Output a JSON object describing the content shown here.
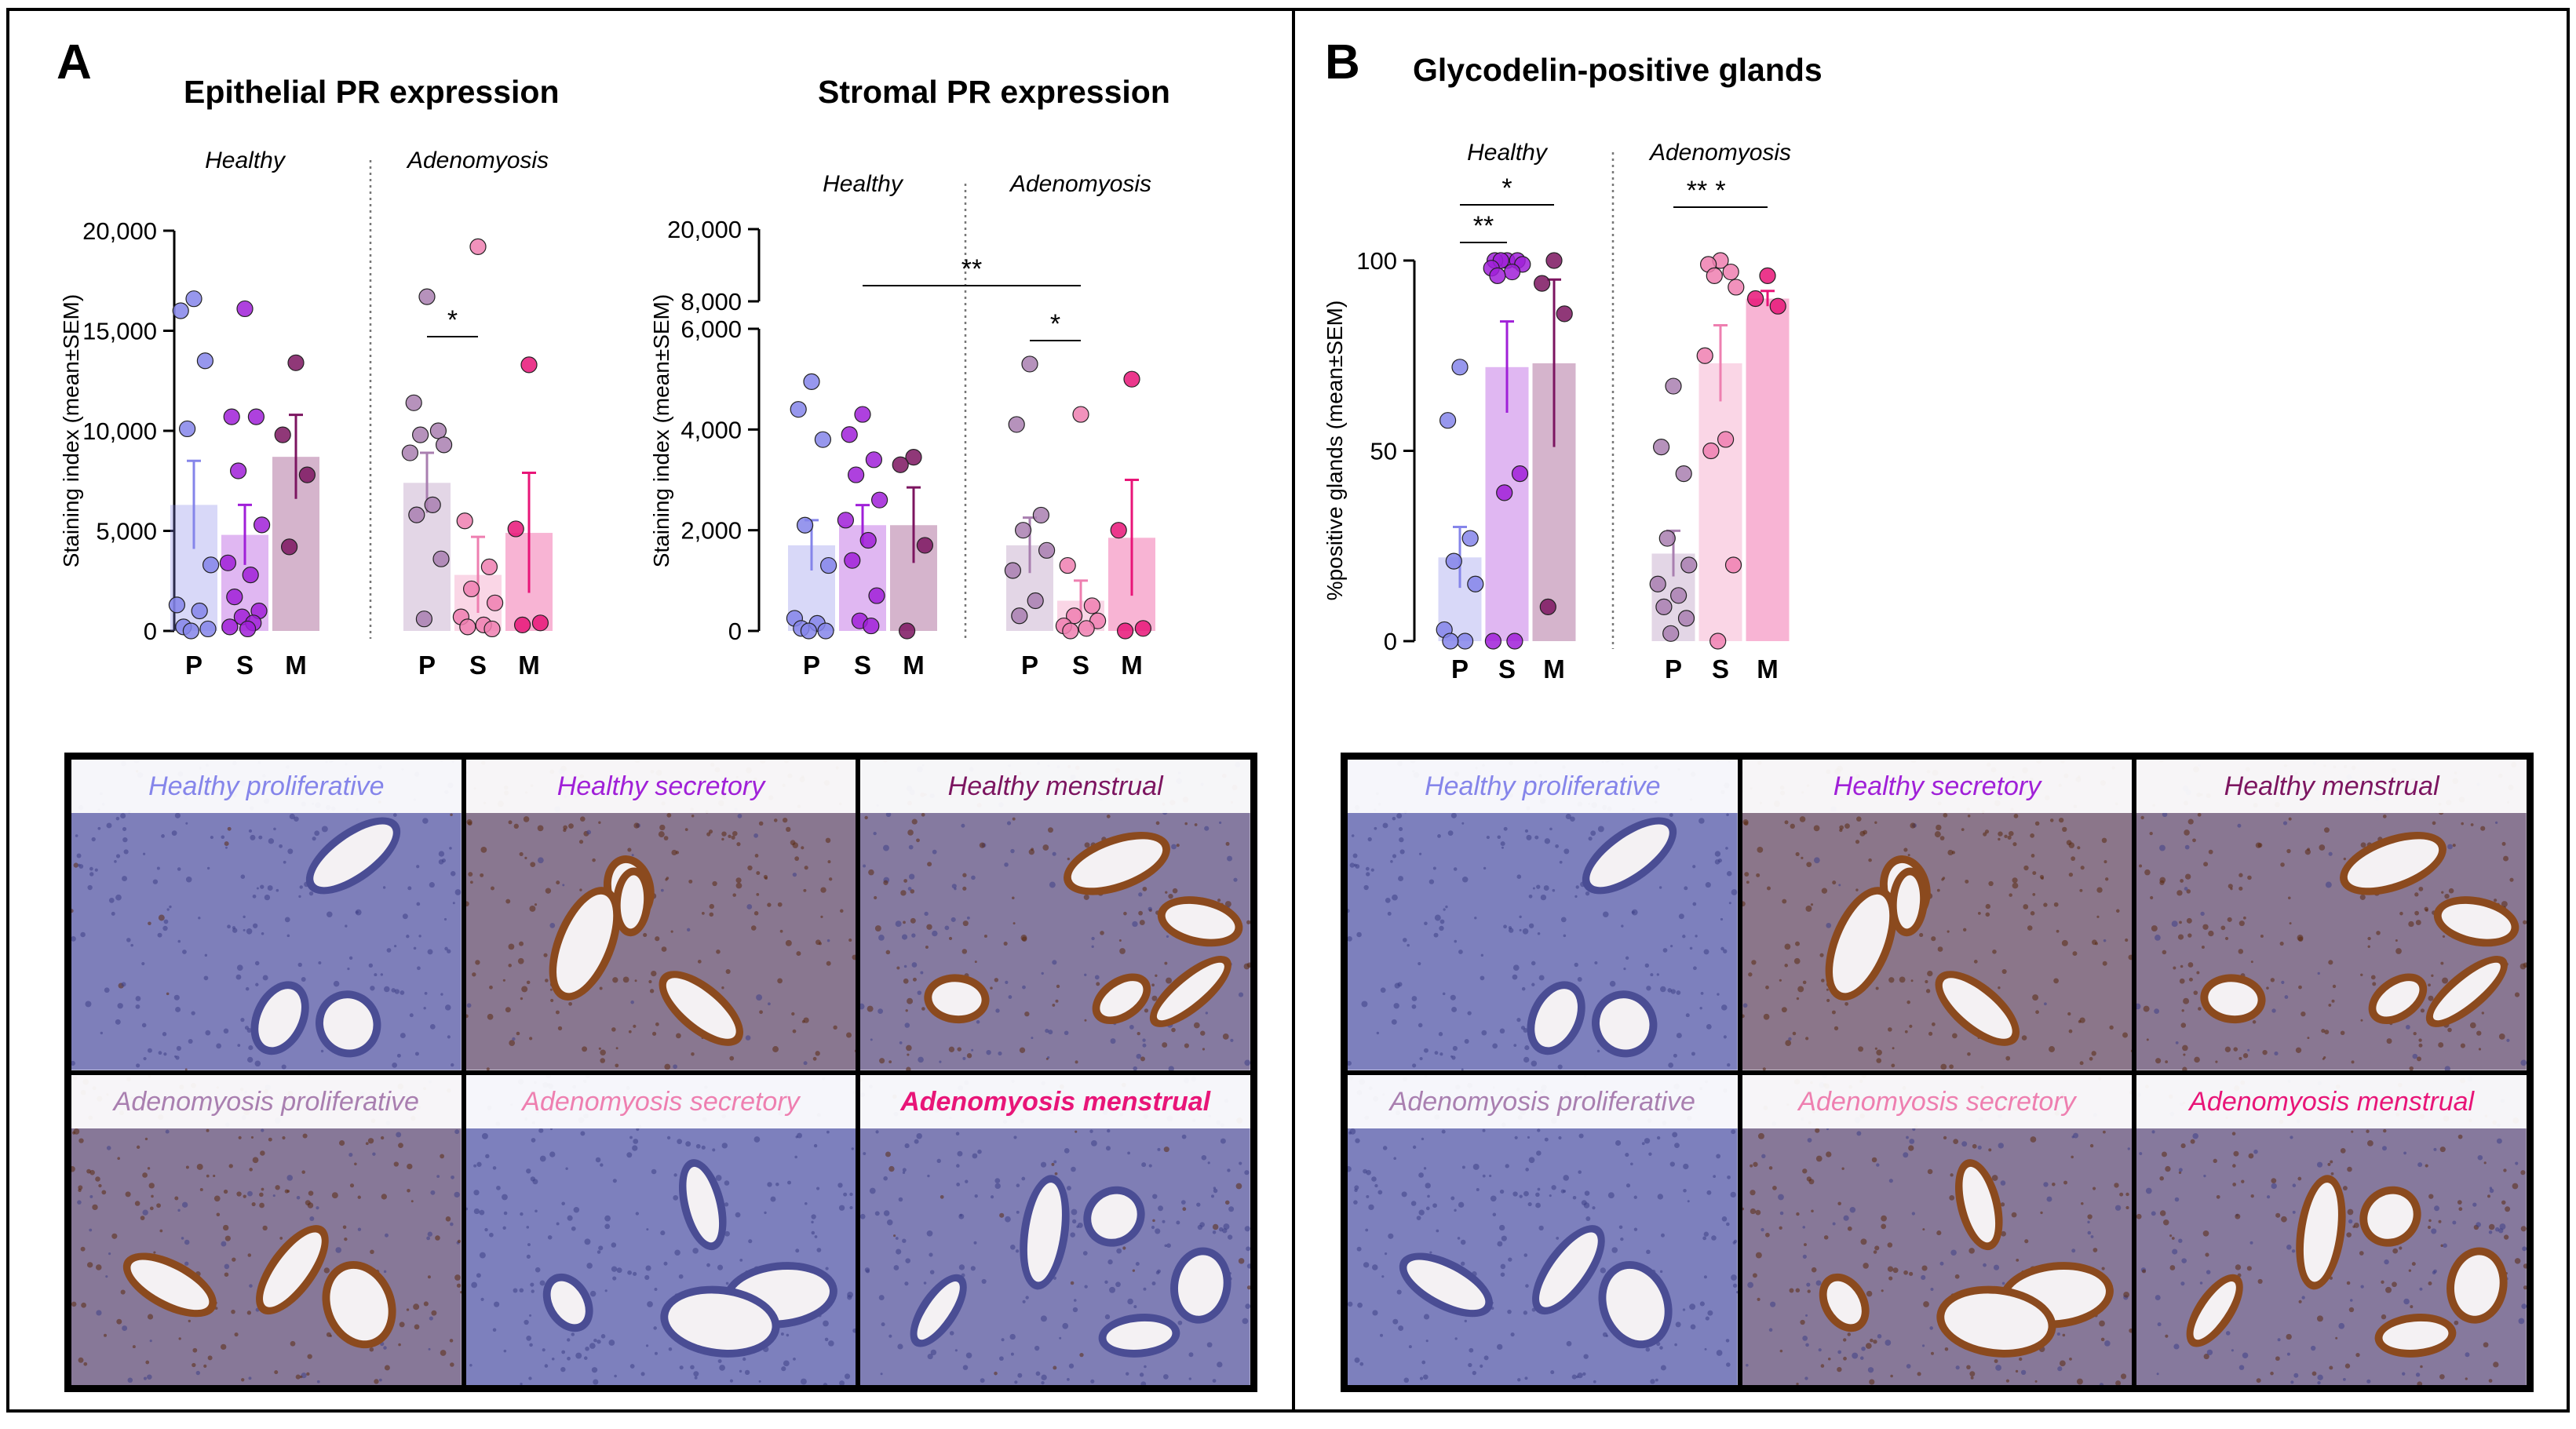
{
  "colors": {
    "healthy_P": "#8585ea",
    "healthy_S": "#a020d8",
    "healthy_M": "#7c1560",
    "adeno_P": "#a97fb0",
    "adeno_S": "#ee7fb0",
    "adeno_M": "#e81578",
    "divider": "#777777",
    "stain_blue": "#6b6fb0",
    "stain_brown": "#8b4a1e"
  },
  "panels": {
    "A": {
      "label": "A"
    },
    "B": {
      "label": "B"
    }
  },
  "chart_data": [
    {
      "id": "epithelial",
      "type": "bar",
      "title": "Epithelial PR expression",
      "ylabel": "Staining index (mean±SEM)",
      "ylim": [
        0,
        20000
      ],
      "yticks": [
        0,
        5000,
        10000,
        15000,
        20000
      ],
      "ytick_labels": [
        "0",
        "5,000",
        "10,000",
        "15,000",
        "20,000"
      ],
      "categories": [
        "P",
        "S",
        "M",
        "P",
        "S",
        "M"
      ],
      "groups": [
        {
          "name": "Healthy",
          "span": [
            0,
            2
          ]
        },
        {
          "name": "Adenomyosis",
          "span": [
            3,
            5
          ]
        }
      ],
      "series": [
        {
          "name": "Healthy P",
          "color_key": "healthy_P",
          "mean": 6300,
          "sem": 2200,
          "points": [
            16600,
            16000,
            13500,
            10100,
            3300,
            1300,
            1000,
            200,
            100,
            0
          ]
        },
        {
          "name": "Healthy S",
          "color_key": "healthy_S",
          "mean": 4800,
          "sem": 1500,
          "points": [
            16100,
            10700,
            10700,
            8000,
            5300,
            3400,
            2800,
            1700,
            1000,
            700,
            400,
            200,
            100
          ]
        },
        {
          "name": "Healthy M",
          "color_key": "healthy_M",
          "mean": 8700,
          "sem": 2100,
          "points": [
            13400,
            9800,
            7800,
            4200
          ]
        },
        {
          "name": "Adenomyosis P",
          "color_key": "adeno_P",
          "mean": 7400,
          "sem": 1500,
          "points": [
            16700,
            11400,
            10000,
            9800,
            9300,
            8900,
            6300,
            5800,
            3600,
            600
          ]
        },
        {
          "name": "Adenomyosis S",
          "color_key": "adeno_S",
          "mean": 2800,
          "sem": 1900,
          "points": [
            19200,
            5500,
            3200,
            2100,
            1400,
            700,
            300,
            200,
            100
          ]
        },
        {
          "name": "Adenomyosis M",
          "color_key": "adeno_M",
          "mean": 4900,
          "sem": 3000,
          "points": [
            13300,
            5100,
            400,
            300
          ]
        }
      ],
      "significance": [
        {
          "from": 3,
          "to": 4,
          "label": "*"
        }
      ]
    },
    {
      "id": "stromal",
      "type": "bar",
      "title": "Stromal PR expression",
      "ylabel": "Staining index (mean±SEM)",
      "y_axis": "broken",
      "ylim_lower": [
        0,
        6000
      ],
      "ylim_upper": [
        8000,
        20000
      ],
      "yticks_lower": [
        0,
        2000,
        4000,
        6000
      ],
      "yticks_upper": [
        8000,
        20000
      ],
      "ytick_labels_lower": [
        "0",
        "2,000",
        "4,000",
        "6,000"
      ],
      "ytick_labels_upper": [
        "8,000",
        "20,000"
      ],
      "categories": [
        "P",
        "S",
        "M",
        "P",
        "S",
        "M"
      ],
      "groups": [
        {
          "name": "Healthy",
          "span": [
            0,
            2
          ]
        },
        {
          "name": "Adenomyosis",
          "span": [
            3,
            5
          ]
        }
      ],
      "series": [
        {
          "name": "Healthy P",
          "color_key": "healthy_P",
          "mean": 1700,
          "sem": 500,
          "points": [
            4950,
            4400,
            3800,
            2100,
            1300,
            250,
            150,
            50,
            0,
            0
          ]
        },
        {
          "name": "Healthy S",
          "color_key": "healthy_S",
          "mean": 2100,
          "sem": 400,
          "points": [
            4300,
            3900,
            3400,
            3100,
            2600,
            2200,
            1800,
            1400,
            700,
            200,
            100
          ]
        },
        {
          "name": "Healthy M",
          "color_key": "healthy_M",
          "mean": 2100,
          "sem": 750,
          "points": [
            3450,
            3300,
            1700,
            0
          ]
        },
        {
          "name": "Adenomyosis P",
          "color_key": "adeno_P",
          "mean": 1700,
          "sem": 550,
          "points": [
            5300,
            4100,
            2300,
            2000,
            1600,
            1200,
            600,
            300
          ]
        },
        {
          "name": "Adenomyosis S",
          "color_key": "adeno_S",
          "mean": 600,
          "sem": 400,
          "points": [
            4300,
            1300,
            500,
            300,
            200,
            100,
            50,
            0
          ]
        },
        {
          "name": "Adenomyosis M",
          "color_key": "adeno_M",
          "mean": 1850,
          "sem": 1150,
          "points": [
            5000,
            2000,
            50,
            0
          ]
        }
      ],
      "significance": [
        {
          "from": 1,
          "to": 4,
          "label": "**"
        },
        {
          "from": 3,
          "to": 4,
          "label": "*"
        }
      ]
    },
    {
      "id": "glycodelin",
      "type": "bar",
      "title": "Glycodelin-positive glands",
      "ylabel": "%positive glands (mean±SEM)",
      "ylim": [
        0,
        100
      ],
      "yticks": [
        0,
        50,
        100
      ],
      "ytick_labels": [
        "0",
        "50",
        "100"
      ],
      "categories": [
        "P",
        "S",
        "M",
        "P",
        "S",
        "M"
      ],
      "groups": [
        {
          "name": "Healthy",
          "span": [
            0,
            2
          ]
        },
        {
          "name": "Adenomyosis",
          "span": [
            3,
            5
          ]
        }
      ],
      "series": [
        {
          "name": "Healthy P",
          "color_key": "healthy_P",
          "mean": 22,
          "sem": 8,
          "points": [
            72,
            58,
            27,
            21,
            15,
            3,
            0,
            0
          ]
        },
        {
          "name": "Healthy S",
          "color_key": "healthy_S",
          "mean": 72,
          "sem": 12,
          "points": [
            100,
            100,
            100,
            100,
            99,
            98,
            97,
            96,
            44,
            39,
            0,
            0
          ]
        },
        {
          "name": "Healthy M",
          "color_key": "healthy_M",
          "mean": 73,
          "sem": 22,
          "points": [
            100,
            94,
            86,
            9
          ]
        },
        {
          "name": "Adenomyosis P",
          "color_key": "adeno_P",
          "mean": 23,
          "sem": 6,
          "points": [
            67,
            51,
            44,
            27,
            20,
            15,
            12,
            9,
            6,
            2
          ]
        },
        {
          "name": "Adenomyosis S",
          "color_key": "adeno_S",
          "mean": 73,
          "sem": 10,
          "points": [
            100,
            99,
            97,
            96,
            93,
            75,
            53,
            50,
            20,
            0
          ]
        },
        {
          "name": "Adenomyosis M",
          "color_key": "adeno_M",
          "mean": 90,
          "sem": 2,
          "points": [
            96,
            90,
            88
          ]
        }
      ],
      "significance": [
        {
          "from": 0,
          "to": 1,
          "label": "**"
        },
        {
          "from": 0,
          "to": 2,
          "label": "*"
        },
        {
          "from": 3,
          "to": 4,
          "label": "**"
        },
        {
          "from": 3,
          "to": 5,
          "label": "*"
        }
      ]
    }
  ],
  "micrographs_A": [
    {
      "label": "Healthy proliferative",
      "color_key": "healthy_P",
      "bold": false,
      "stain": 0.05
    },
    {
      "label": "Healthy secretory",
      "color_key": "healthy_S",
      "bold": false,
      "stain": 0.85
    },
    {
      "label": "Healthy menstrual",
      "color_key": "healthy_M",
      "bold": false,
      "stain": 0.55
    },
    {
      "label": "Adenomyosis proliferative",
      "color_key": "adeno_P",
      "bold": false,
      "stain": 0.7
    },
    {
      "label": "Adenomyosis secretory",
      "color_key": "adeno_S",
      "bold": false,
      "stain": 0.0
    },
    {
      "label": "Adenomyosis menstrual",
      "color_key": "adeno_M",
      "bold": true,
      "stain": 0.15
    }
  ],
  "micrographs_B": [
    {
      "label": "Healthy proliferative",
      "color_key": "healthy_P",
      "bold": false,
      "stain": 0.0
    },
    {
      "label": "Healthy secretory",
      "color_key": "healthy_S",
      "bold": false,
      "stain": 0.95
    },
    {
      "label": "Healthy menstrual",
      "color_key": "healthy_M",
      "bold": false,
      "stain": 0.8
    },
    {
      "label": "Adenomyosis proliferative",
      "color_key": "adeno_P",
      "bold": false,
      "stain": 0.0
    },
    {
      "label": "Adenomyosis secretory",
      "color_key": "adeno_S",
      "bold": false,
      "stain": 0.7
    },
    {
      "label": "Adenomyosis menstrual",
      "color_key": "adeno_M",
      "bold": false,
      "stain": 0.6
    }
  ]
}
